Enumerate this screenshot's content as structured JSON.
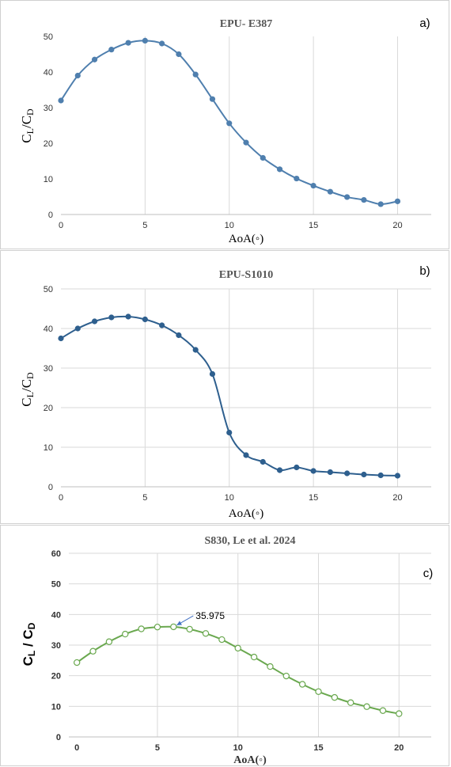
{
  "chart_data": [
    {
      "type": "line",
      "tag": "a)",
      "title": "EPU- E387",
      "xlabel": "AoA(◦)",
      "ylabel_main": "C",
      "ylabel_sub1": "L",
      "ylabel_mid": "/C",
      "ylabel_sub2": "D",
      "xlim": [
        0,
        22
      ],
      "ylim": [
        0,
        50
      ],
      "xticks": [
        0,
        5,
        10,
        15,
        20
      ],
      "yticks": [
        0,
        10,
        20,
        30,
        40,
        50
      ],
      "xgrid": true,
      "ygrid": false,
      "color": "#4f7fae",
      "marker": "filled",
      "x": [
        0,
        1,
        2,
        3,
        4,
        5,
        6,
        7,
        8,
        9,
        10,
        11,
        12,
        13,
        14,
        15,
        16,
        17,
        18,
        19,
        20
      ],
      "y": [
        32.0,
        39.0,
        43.5,
        46.3,
        48.2,
        48.8,
        48.0,
        45.0,
        39.3,
        32.4,
        25.6,
        20.2,
        15.9,
        12.7,
        10.1,
        8.1,
        6.4,
        4.9,
        4.1,
        2.9,
        3.7
      ]
    },
    {
      "type": "line",
      "tag": "b)",
      "title": "EPU-S1010",
      "xlabel": "AoA(◦)",
      "ylabel_main": "C",
      "ylabel_sub1": "L",
      "ylabel_mid": "/C",
      "ylabel_sub2": "D",
      "xlim": [
        0,
        22
      ],
      "ylim": [
        0,
        50
      ],
      "xticks": [
        0,
        5,
        10,
        15,
        20
      ],
      "yticks": [
        0,
        10,
        20,
        30,
        40,
        50
      ],
      "xgrid": true,
      "ygrid": true,
      "color": "#2e5f8e",
      "marker": "filled",
      "x": [
        0,
        1,
        2,
        3,
        4,
        5,
        6,
        7,
        8,
        9,
        10,
        11,
        12,
        13,
        14,
        15,
        16,
        17,
        18,
        19,
        20
      ],
      "y": [
        37.5,
        40.0,
        41.8,
        42.8,
        43.0,
        42.3,
        40.8,
        38.3,
        34.6,
        28.5,
        13.7,
        8.0,
        6.3,
        4.2,
        4.9,
        4.0,
        3.7,
        3.4,
        3.1,
        2.9,
        2.8
      ]
    },
    {
      "type": "line",
      "tag": "c)",
      "title": "S830, Le et al. 2024",
      "xlabel": "AoA(◦)",
      "ylabel_main": "C",
      "ylabel_sub1": "L",
      "ylabel_mid": " / C",
      "ylabel_sub2": "D",
      "xlim": [
        -0.5,
        22
      ],
      "ylim": [
        0,
        60
      ],
      "xticks": [
        0,
        5,
        10,
        15,
        20
      ],
      "yticks": [
        0,
        10,
        20,
        30,
        40,
        50,
        60
      ],
      "xgrid": true,
      "ygrid": true,
      "color": "#6aa84f",
      "marker": "hollow",
      "annotation": {
        "text": "35.975",
        "x": 6,
        "y": 35.975
      },
      "x": [
        0,
        1,
        2,
        3,
        4,
        5,
        6,
        7,
        8,
        9,
        10,
        11,
        12,
        13,
        14,
        15,
        16,
        17,
        18,
        19,
        20
      ],
      "y": [
        24.3,
        28.0,
        31.1,
        33.6,
        35.3,
        35.9,
        35.975,
        35.2,
        33.8,
        31.8,
        29.0,
        26.1,
        23.0,
        19.9,
        17.2,
        14.8,
        12.9,
        11.2,
        9.9,
        8.6,
        7.6
      ]
    }
  ]
}
